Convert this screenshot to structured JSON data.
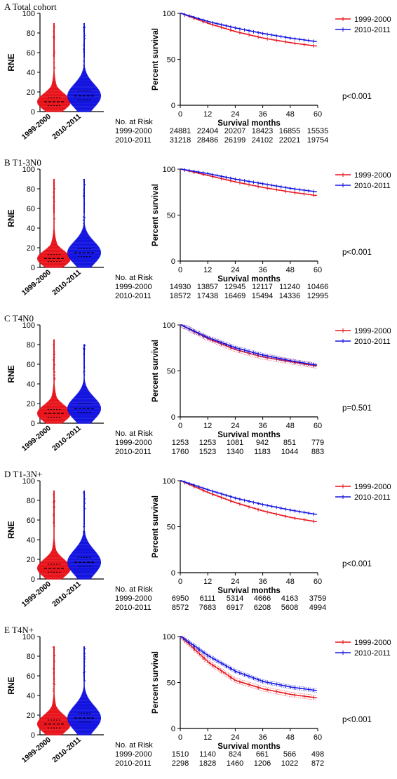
{
  "common": {
    "violin_ylabel": "RNE",
    "violin_yticks": [
      "0",
      "20",
      "40",
      "60",
      "80",
      "100"
    ],
    "violin_groups": [
      "1999-2000",
      "2010-2011"
    ],
    "km_ylabel": "Percent survival",
    "km_xlabel": "Survival months",
    "km_xticks": [
      "0",
      "12",
      "24",
      "36",
      "48",
      "60"
    ],
    "km_yticks": [
      "0",
      "50",
      "100"
    ],
    "legend": [
      "1999-2000",
      "2010-2011"
    ],
    "risk_header": "No. at Risk",
    "colors": {
      "series1": "#e8141c",
      "series2": "#1414e0",
      "axis": "#000000"
    }
  },
  "chart_data": [
    {
      "letter": "A",
      "title": "Total cohort",
      "type": "line",
      "x": [
        0,
        12,
        24,
        36,
        48,
        60
      ],
      "ylim": [
        0,
        100
      ],
      "xlim": [
        0,
        60
      ],
      "series": [
        {
          "name": "1999-2000",
          "values": [
            100,
            89,
            80,
            73,
            68,
            64
          ]
        },
        {
          "name": "2010-2011",
          "values": [
            100,
            91,
            84,
            78,
            73,
            69
          ]
        }
      ],
      "pvalue": "p<0.001",
      "risk": [
        {
          "label": "1999-2000",
          "values": [
            "24881",
            "22404",
            "20207",
            "18423",
            "16855",
            "15535"
          ]
        },
        {
          "label": "2010-2011",
          "values": [
            "31218",
            "28486",
            "26199",
            "24102",
            "22021",
            "19754"
          ]
        }
      ],
      "violin": {
        "medians": [
          10,
          16
        ],
        "q1": [
          6,
          12
        ],
        "q3": [
          14,
          21
        ],
        "max": [
          90,
          90
        ]
      },
      "ci": false
    },
    {
      "letter": "B",
      "title": "T1-3N0",
      "type": "line",
      "x": [
        0,
        12,
        24,
        36,
        48,
        60
      ],
      "ylim": [
        0,
        100
      ],
      "xlim": [
        0,
        60
      ],
      "series": [
        {
          "name": "1999-2000",
          "values": [
            100,
            93,
            86,
            80,
            75,
            71
          ]
        },
        {
          "name": "2010-2011",
          "values": [
            100,
            95,
            89,
            84,
            79,
            75
          ]
        }
      ],
      "pvalue": "p<0.001",
      "risk": [
        {
          "label": "1999-2000",
          "values": [
            "14930",
            "13857",
            "12945",
            "12117",
            "11240",
            "10466"
          ]
        },
        {
          "label": "2010-2011",
          "values": [
            "18572",
            "17438",
            "16469",
            "15494",
            "14336",
            "12995"
          ]
        }
      ],
      "violin": {
        "medians": [
          9,
          15
        ],
        "q1": [
          6,
          11
        ],
        "q3": [
          13,
          19
        ],
        "max": [
          90,
          90
        ]
      },
      "ci": false
    },
    {
      "letter": "C",
      "title": "T4N0",
      "type": "line",
      "x": [
        0,
        12,
        24,
        36,
        48,
        60
      ],
      "ylim": [
        0,
        100
      ],
      "xlim": [
        0,
        60
      ],
      "series": [
        {
          "name": "1999-2000",
          "values": [
            100,
            85,
            73,
            65,
            60,
            55
          ]
        },
        {
          "name": "2010-2011",
          "values": [
            100,
            86,
            75,
            67,
            61,
            56
          ]
        }
      ],
      "pvalue": "p=0.501",
      "risk": [
        {
          "label": "1999-2000",
          "values": [
            "1253",
            "1253",
            "1081",
            "942",
            "851",
            "779"
          ]
        },
        {
          "label": "2010-2011",
          "values": [
            "1760",
            "1523",
            "1340",
            "1183",
            "1044",
            "883"
          ]
        }
      ],
      "violin": {
        "medians": [
          10,
          15
        ],
        "q1": [
          6,
          11
        ],
        "q3": [
          14,
          20
        ],
        "max": [
          85,
          80
        ]
      },
      "ci": true
    },
    {
      "letter": "D",
      "title": "T1-3N+",
      "type": "line",
      "x": [
        0,
        12,
        24,
        36,
        48,
        60
      ],
      "ylim": [
        0,
        100
      ],
      "xlim": [
        0,
        60
      ],
      "series": [
        {
          "name": "1999-2000",
          "values": [
            100,
            87,
            76,
            67,
            60,
            55
          ]
        },
        {
          "name": "2010-2011",
          "values": [
            100,
            90,
            81,
            74,
            68,
            63
          ]
        }
      ],
      "pvalue": "p<0.001",
      "risk": [
        {
          "label": "1999-2000",
          "values": [
            "6950",
            "6111",
            "5314",
            "4666",
            "4163",
            "3759"
          ]
        },
        {
          "label": "2010-2011",
          "values": [
            "8572",
            "7683",
            "6917",
            "6208",
            "5608",
            "4994"
          ]
        }
      ],
      "violin": {
        "medians": [
          11,
          17
        ],
        "q1": [
          7,
          13
        ],
        "q3": [
          15,
          22
        ],
        "max": [
          90,
          90
        ]
      },
      "ci": false
    },
    {
      "letter": "E",
      "title": "T4N+",
      "type": "line",
      "x": [
        0,
        12,
        24,
        36,
        48,
        60
      ],
      "ylim": [
        0,
        100
      ],
      "xlim": [
        0,
        60
      ],
      "series": [
        {
          "name": "1999-2000",
          "values": [
            100,
            72,
            52,
            43,
            37,
            33
          ]
        },
        {
          "name": "2010-2011",
          "values": [
            100,
            79,
            62,
            51,
            45,
            41
          ]
        }
      ],
      "pvalue": "p<0.001",
      "risk": [
        {
          "label": "1999-2000",
          "values": [
            "1510",
            "1140",
            "824",
            "661",
            "566",
            "498"
          ]
        },
        {
          "label": "2010-2011",
          "values": [
            "2298",
            "1828",
            "1460",
            "1206",
            "1022",
            "872"
          ]
        }
      ],
      "violin": {
        "medians": [
          11,
          17
        ],
        "q1": [
          7,
          13
        ],
        "q3": [
          15,
          22
        ],
        "max": [
          90,
          90
        ]
      },
      "ci": true
    }
  ]
}
